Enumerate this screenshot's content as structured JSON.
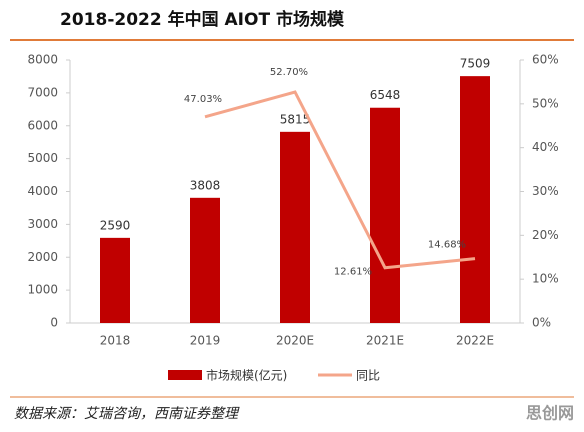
{
  "chart_data": {
    "type": "bar-line",
    "title": "2018-2022 年中国 AIOT 市场规模",
    "categories": [
      "2018",
      "2019",
      "2020E",
      "2021E",
      "2022E"
    ],
    "series": [
      {
        "name": "市场规模(亿元)",
        "type": "bar",
        "color": "#c00000",
        "values": [
          2590,
          3808,
          5815,
          6548,
          7509
        ]
      },
      {
        "name": "同比",
        "type": "line",
        "axis": "y2",
        "color": "#f4a58a",
        "values": [
          null,
          47.03,
          52.7,
          12.61,
          14.68
        ],
        "value_labels": [
          null,
          "47.03%",
          "52.70%",
          "12.61%",
          "14.68%"
        ]
      }
    ],
    "ylim": [
      0,
      8000
    ],
    "yticks": [
      0,
      1000,
      2000,
      3000,
      4000,
      5000,
      6000,
      7000,
      8000
    ],
    "y2lim": [
      0,
      60
    ],
    "y2ticks": [
      {
        "value": 0,
        "label": "0%"
      },
      {
        "value": 10,
        "label": "10%"
      },
      {
        "value": 20,
        "label": "20%"
      },
      {
        "value": 30,
        "label": "30%"
      },
      {
        "value": 40,
        "label": "40%"
      },
      {
        "value": 50,
        "label": "50%"
      },
      {
        "value": 60,
        "label": "60%"
      }
    ],
    "source": "数据来源：艾瑞咨询，西南证券整理",
    "watermark": "思创网"
  }
}
